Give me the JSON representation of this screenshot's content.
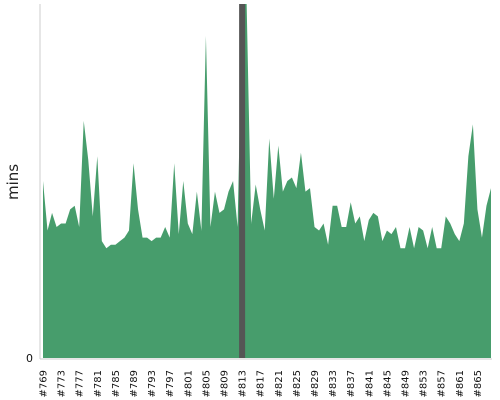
{
  "chart_data": {
    "type": "area",
    "ylabel": "mins",
    "y_tick_labels": [
      "0"
    ],
    "ylim": [
      0,
      100
    ],
    "x_tick_labels": [
      "#769",
      "#773",
      "#777",
      "#781",
      "#785",
      "#789",
      "#793",
      "#797",
      "#801",
      "#805",
      "#809",
      "#813",
      "#817",
      "#821",
      "#825",
      "#829",
      "#833",
      "#837",
      "#841",
      "#845",
      "#849",
      "#853",
      "#857",
      "#861",
      "#865"
    ],
    "x": [
      769,
      770,
      771,
      772,
      773,
      774,
      775,
      776,
      777,
      778,
      779,
      780,
      781,
      782,
      783,
      784,
      785,
      786,
      787,
      788,
      789,
      790,
      791,
      792,
      793,
      794,
      795,
      796,
      797,
      798,
      799,
      800,
      801,
      802,
      803,
      804,
      805,
      806,
      807,
      808,
      809,
      810,
      811,
      812,
      813,
      814,
      815,
      816,
      817,
      818,
      819,
      820,
      821,
      822,
      823,
      824,
      825,
      826,
      827,
      828,
      829,
      830,
      831,
      832,
      833,
      834,
      835,
      836,
      837,
      838,
      839,
      840,
      841,
      842,
      843,
      844,
      845,
      846,
      847,
      848,
      849,
      850,
      851,
      852,
      853,
      854,
      855,
      856,
      857,
      858,
      859,
      860,
      861,
      862,
      863,
      864,
      865,
      866,
      867,
      868
    ],
    "values": [
      50,
      36,
      41,
      37,
      38,
      38,
      42,
      43,
      37,
      67,
      56,
      40,
      57,
      33,
      31,
      32,
      32,
      33,
      34,
      36,
      55,
      42,
      34,
      34,
      33,
      34,
      34,
      37,
      34,
      55,
      35,
      50,
      38,
      35,
      47,
      36,
      91,
      37,
      47,
      41,
      42,
      47,
      50,
      37,
      100,
      100,
      38,
      49,
      42,
      36,
      62,
      45,
      60,
      47,
      50,
      51,
      48,
      58,
      47,
      48,
      37,
      36,
      38,
      32,
      43,
      43,
      37,
      37,
      44,
      38,
      40,
      33,
      39,
      41,
      40,
      33,
      36,
      35,
      37,
      31,
      31,
      37,
      31,
      37,
      36,
      31,
      37,
      31,
      31,
      40,
      38,
      35,
      33,
      38,
      57,
      66,
      42,
      34,
      43,
      48
    ],
    "highlight": {
      "x": 813,
      "color": "#555555"
    },
    "fill_color": "#479d6c",
    "grid": false
  }
}
